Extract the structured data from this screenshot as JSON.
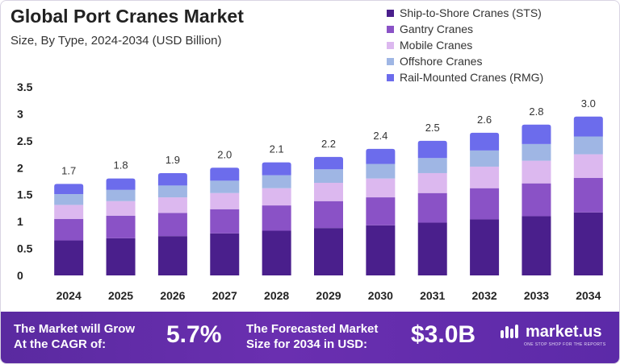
{
  "header": {
    "title": "Global Port Cranes Market",
    "subtitle": "Size, By Type, 2024-2034 (USD Billion)"
  },
  "legend": [
    {
      "label": "Ship-to-Shore Cranes (STS)",
      "color": "#4a1f8c"
    },
    {
      "label": "Gantry Cranes",
      "color": "#8a52c6"
    },
    {
      "label": "Mobile Cranes",
      "color": "#dcb8ef"
    },
    {
      "label": "Offshore Cranes",
      "color": "#9fb6e4"
    },
    {
      "label": "Rail-Mounted Cranes (RMG)",
      "color": "#6c6cec"
    }
  ],
  "chart_data": {
    "type": "bar",
    "stacked": true,
    "categories": [
      "2024",
      "2025",
      "2026",
      "2027",
      "2028",
      "2029",
      "2030",
      "2031",
      "2032",
      "2033",
      "2034"
    ],
    "totals_labels": [
      "1.7",
      "1.8",
      "1.9",
      "2.0",
      "2.1",
      "2.2",
      "2.4",
      "2.5",
      "2.6",
      "2.8",
      "3.0"
    ],
    "series": [
      {
        "name": "Ship-to-Shore Cranes (STS)",
        "values": [
          0.65,
          0.69,
          0.73,
          0.78,
          0.83,
          0.88,
          0.93,
          0.98,
          1.04,
          1.1,
          1.17
        ]
      },
      {
        "name": "Gantry Cranes",
        "values": [
          0.4,
          0.42,
          0.43,
          0.45,
          0.47,
          0.5,
          0.52,
          0.55,
          0.58,
          0.61,
          0.64
        ]
      },
      {
        "name": "Mobile Cranes",
        "values": [
          0.26,
          0.27,
          0.29,
          0.3,
          0.32,
          0.34,
          0.35,
          0.37,
          0.4,
          0.42,
          0.44
        ]
      },
      {
        "name": "Offshore Cranes",
        "values": [
          0.2,
          0.21,
          0.22,
          0.23,
          0.24,
          0.25,
          0.27,
          0.28,
          0.3,
          0.31,
          0.33
        ]
      },
      {
        "name": "Rail-Mounted Cranes (RMG)",
        "values": [
          0.19,
          0.21,
          0.23,
          0.24,
          0.24,
          0.23,
          0.28,
          0.32,
          0.33,
          0.36,
          0.37
        ]
      }
    ],
    "y_ticks": [
      "0",
      "0.5",
      "1",
      "1.5",
      "2",
      "2.5",
      "3",
      "3.5"
    ],
    "ylim": [
      0,
      3.5
    ],
    "grid": false
  },
  "footer": {
    "cagr_label_line1": "The Market will Grow",
    "cagr_label_line2": "At the CAGR of:",
    "cagr_value": "5.7%",
    "forecast_label_line1": "The Forecasted Market",
    "forecast_label_line2": "Size for 2034 in USD:",
    "forecast_value": "$3.0B",
    "brand_name": "market.us",
    "brand_tagline": "ONE STOP SHOP FOR THE REPORTS"
  }
}
